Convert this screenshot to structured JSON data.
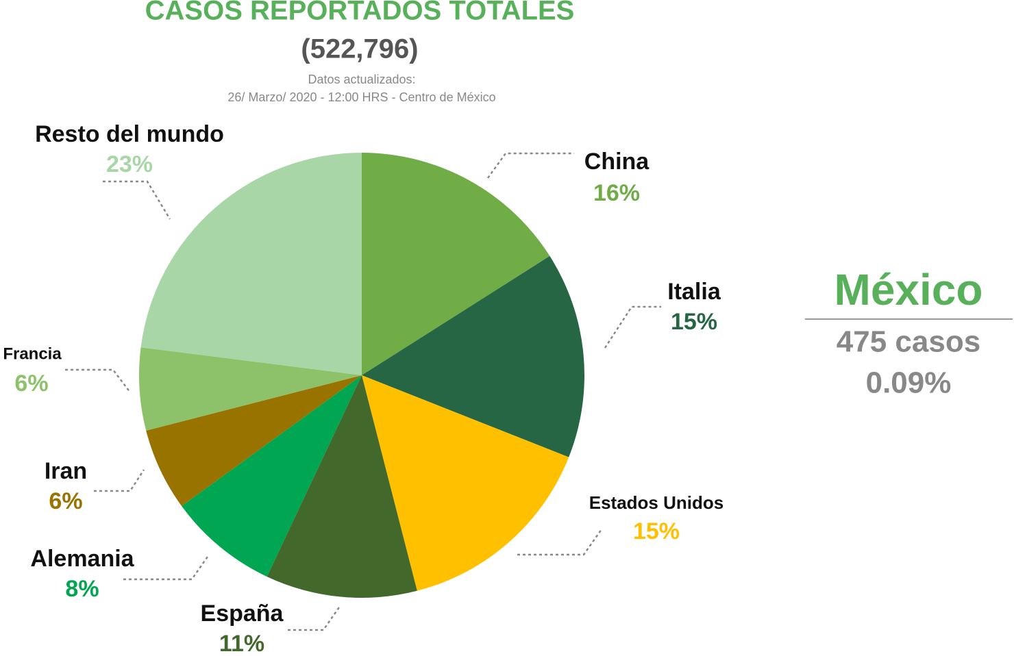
{
  "chart_data": {
    "type": "pie",
    "title": "CASOS REPORTADOS TOTALES",
    "subtitle": "(522,796)",
    "notes": [
      "Datos actualizados:",
      "26/ Marzo/ 2020 - 12:00 HRS - Centro de México"
    ],
    "categories": [
      "China",
      "Italia",
      "Estados Unidos",
      "España",
      "Alemania",
      "Iran",
      "Francia",
      "Resto del mundo"
    ],
    "values": [
      16,
      15,
      15,
      11,
      8,
      6,
      6,
      23
    ],
    "value_labels": [
      "16%",
      "15%",
      "15%",
      "11%",
      "8%",
      "6%",
      "6%",
      "23%"
    ],
    "colors": [
      "#70ad47",
      "#266645",
      "#ffc000",
      "#43682b",
      "#00a651",
      "#997300",
      "#8dc26a",
      "#a9d6a6"
    ],
    "annotations": {
      "country": "México",
      "cases": "475 casos",
      "share": "0.09%"
    }
  }
}
